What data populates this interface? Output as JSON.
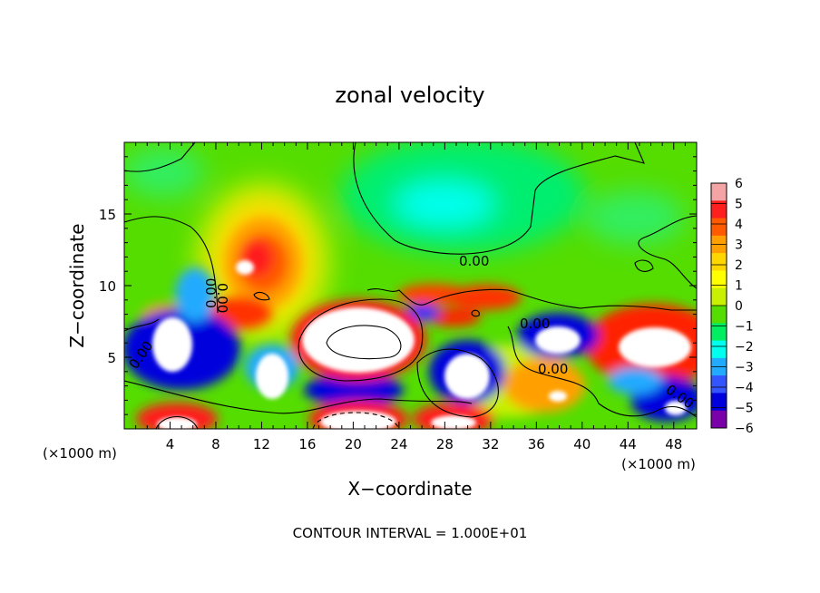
{
  "chart_data": {
    "type": "heatmap",
    "title": "zonal velocity",
    "xlabel": "X−coordinate",
    "ylabel": "Z−coordinate",
    "x_unit_label": "(×1000 m)",
    "z_unit_label": "(×1000 m)",
    "footer": "CONTOUR INTERVAL = 1.000E+01",
    "xlim": [
      0,
      50
    ],
    "ylim": [
      0,
      20
    ],
    "x_ticks": [
      4,
      8,
      12,
      16,
      20,
      24,
      28,
      32,
      36,
      40,
      44,
      48
    ],
    "y_ticks": [
      5,
      10,
      15
    ],
    "colorbar": {
      "min": -6,
      "max": 6,
      "ticks": [
        6,
        5,
        4,
        3,
        2,
        1,
        0,
        -1,
        -2,
        -3,
        -4,
        -5,
        -6
      ],
      "colors": [
        "#f4a4a4",
        "#ff1f1f",
        "#ff5a00",
        "#ffa000",
        "#ffd700",
        "#ffff00",
        "#c8f000",
        "#55dd00",
        "#00ee60",
        "#00ffee",
        "#22aaff",
        "#3355ff",
        "#0000dd",
        "#7a00aa"
      ]
    },
    "contour_label": "0.00",
    "features": [
      {
        "kind": "max",
        "x": 11,
        "z": 11.5,
        "value": 6
      },
      {
        "kind": "min",
        "x": 6,
        "z": 6.2,
        "value": -6
      },
      {
        "kind": "max",
        "x": 20.5,
        "z": 6,
        "value": 6
      },
      {
        "kind": "max",
        "x": 20.5,
        "z": 0.8,
        "value": 6
      },
      {
        "kind": "min",
        "x": 29.5,
        "z": 3.5,
        "value": -6
      },
      {
        "kind": "min",
        "x": 38.5,
        "z": 6.5,
        "value": -6
      },
      {
        "kind": "max",
        "x": 38,
        "z": 2.5,
        "value": 5
      },
      {
        "kind": "max",
        "x": 46,
        "z": 6.5,
        "value": 6
      },
      {
        "kind": "min",
        "x": 47.5,
        "z": 2.5,
        "value": -6
      },
      {
        "kind": "min",
        "x": 29.5,
        "z": 15.5,
        "value": -2
      },
      {
        "kind": "max",
        "x": 30,
        "z": 9,
        "value": 4
      }
    ]
  }
}
